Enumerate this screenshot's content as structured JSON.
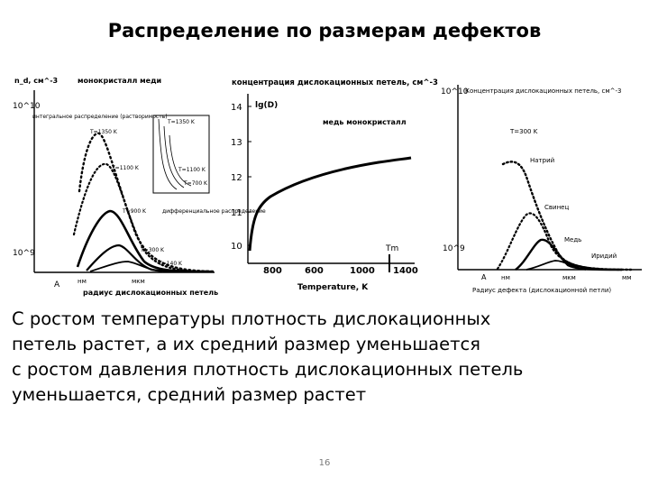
{
  "slide": {
    "title": "Распределение по размерам дефектов",
    "body_lines": [
      "С ростом температуры плотность дислокационных",
      "петель растет, а их средний размер уменьшается",
      "с ростом давления плотность дислокационных петель",
      "уменьшается, средний размер растет"
    ],
    "page_number": "16"
  },
  "figure1": {
    "y_axis_label": "n_d, см^-3",
    "y_tick_top": "10^10",
    "y_tick_bottom": "10^9",
    "title": "монокристалл меди",
    "note_left": "интегральное распределение (растворимость)",
    "note_inset": "дифференциальное распределение",
    "curve_labels": [
      "T=1350 K",
      "T=1100 K",
      "T=900 K",
      "T=300 K",
      "T=140 K"
    ],
    "inset_labels": [
      "T=1350 K",
      "T=1100 K",
      "T=700 K"
    ],
    "x_units": [
      "A",
      "нм",
      "мкм"
    ],
    "x_axis_label": "радиус дислокационных петель"
  },
  "figure2": {
    "header": "концентрация дислокационных петель, см^-3",
    "y_axis_label": "lg(D)",
    "title": "медь монокристалл",
    "y_ticks": [
      "14",
      "13",
      "12",
      "11",
      "10"
    ],
    "x_ticks": [
      "800",
      "600",
      "1000",
      "1400"
    ],
    "x_axis_label": "Temperature, K",
    "marker": "Tm"
  },
  "figure3": {
    "y_tick_top": "10^10",
    "y_tick_bottom": "10^9",
    "header": "Концентрация дислокационных петель, см^-3",
    "condition": "T=300 K",
    "curve_labels": [
      "Натрий",
      "Свинец",
      "Медь",
      "Иридий"
    ],
    "x_units": [
      "A",
      "нм",
      "мкм",
      "мм"
    ],
    "x_axis_label": "Радиус дефекта (дислокационной петли)"
  }
}
